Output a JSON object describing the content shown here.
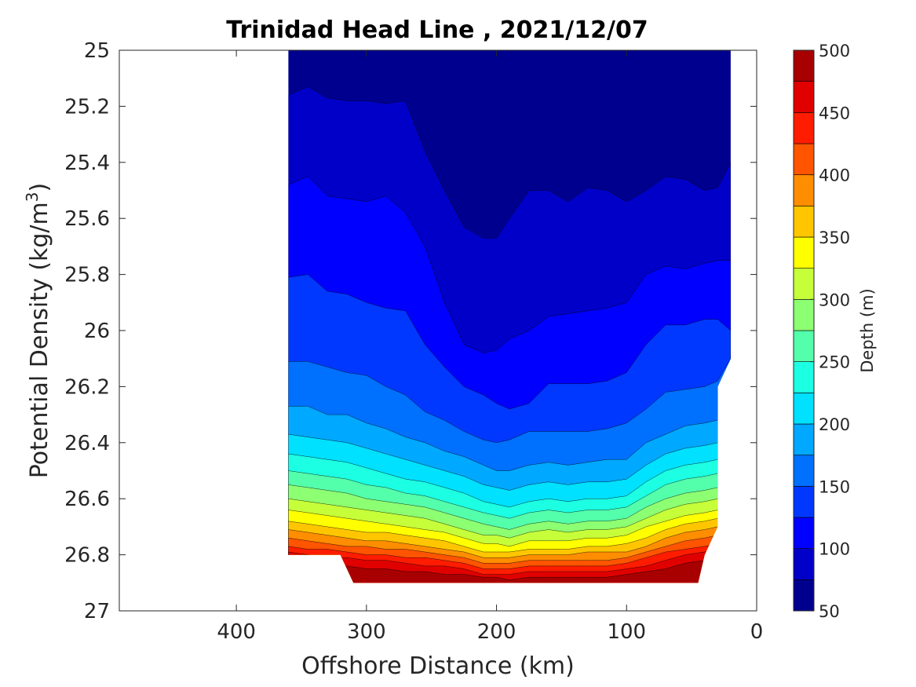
{
  "chart_data": {
    "type": "contour",
    "title": "Trinidad Head Line , 2021/12/07",
    "xlabel": "Offshore Distance (km)",
    "ylabel_prefix": "Potential Density (kg/m",
    "ylabel_sup": "3",
    "ylabel_suffix": ")",
    "xlim": [
      490,
      0
    ],
    "x_reversed": true,
    "ylim": [
      27,
      25
    ],
    "y_reversed": true,
    "x_ticks": [
      400,
      300,
      200,
      100,
      0
    ],
    "x_tick_labels": [
      "400",
      "300",
      "200",
      "100",
      "0"
    ],
    "y_ticks": [
      25,
      25.2,
      25.4,
      25.6,
      25.8,
      26,
      26.2,
      26.4,
      26.6,
      26.8,
      27
    ],
    "y_tick_labels": [
      "25",
      "25.2",
      "25.4",
      "25.6",
      "25.8",
      "26",
      "26.2",
      "26.4",
      "26.6",
      "26.8",
      "27"
    ],
    "colorbar": {
      "label": "Depth (m)",
      "range": [
        50,
        500
      ],
      "step": 25,
      "ticks": [
        50,
        100,
        150,
        200,
        250,
        300,
        350,
        400,
        450,
        500
      ],
      "tick_labels": [
        "50",
        "100",
        "150",
        "200",
        "250",
        "300",
        "350",
        "400",
        "450",
        "500"
      ],
      "colors": [
        "#00008f",
        "#0000c8",
        "#0000ff",
        "#0038ff",
        "#0070ff",
        "#00a8ff",
        "#00e0ff",
        "#1cffe3",
        "#54ffab",
        "#8dff72",
        "#c6ff39",
        "#ffff00",
        "#ffc600",
        "#ff8d00",
        "#ff5400",
        "#ff1c00",
        "#e00000",
        "#a80000"
      ]
    },
    "stations_km": [
      360,
      345,
      330,
      315,
      300,
      285,
      270,
      255,
      240,
      225,
      210,
      200,
      190,
      175,
      160,
      145,
      130,
      115,
      100,
      85,
      70,
      55,
      40,
      30,
      20
    ],
    "depth_isopycnals": [
      {
        "depth": 75,
        "sigma": [
          25.16,
          25.13,
          25.17,
          25.18,
          25.18,
          25.19,
          25.18,
          25.36,
          25.5,
          25.63,
          25.67,
          25.67,
          25.6,
          25.5,
          25.5,
          25.54,
          25.49,
          25.5,
          25.54,
          25.5,
          25.45,
          25.46,
          25.5,
          25.49,
          25.4
        ]
      },
      {
        "depth": 100,
        "sigma": [
          25.48,
          25.45,
          25.52,
          25.53,
          25.54,
          25.52,
          25.58,
          25.7,
          25.9,
          26.05,
          26.08,
          26.07,
          26.03,
          26.0,
          25.95,
          25.94,
          25.93,
          25.92,
          25.9,
          25.8,
          25.77,
          25.78,
          25.76,
          25.75,
          25.75
        ]
      },
      {
        "depth": 125,
        "sigma": [
          25.81,
          25.8,
          25.86,
          25.87,
          25.9,
          25.92,
          25.93,
          26.05,
          26.13,
          26.2,
          26.23,
          26.26,
          26.28,
          26.26,
          26.19,
          26.19,
          26.19,
          26.18,
          26.15,
          26.05,
          25.98,
          25.98,
          25.96,
          25.96,
          26.0
        ]
      },
      {
        "depth": 150,
        "sigma": [
          26.11,
          26.11,
          26.13,
          26.15,
          26.16,
          26.2,
          26.23,
          26.29,
          26.32,
          26.36,
          26.39,
          26.4,
          26.39,
          26.36,
          26.36,
          26.36,
          26.36,
          26.35,
          26.33,
          26.28,
          26.22,
          26.21,
          26.2,
          26.18,
          26.1
        ]
      },
      {
        "depth": 175,
        "sigma": [
          26.27,
          26.27,
          26.3,
          26.3,
          26.33,
          26.35,
          26.38,
          26.4,
          26.43,
          26.45,
          26.48,
          26.5,
          26.5,
          26.48,
          26.47,
          26.48,
          26.47,
          26.46,
          26.46,
          26.4,
          26.37,
          26.34,
          26.33,
          26.32,
          26.25
        ]
      },
      {
        "depth": 200,
        "sigma": [
          26.37,
          26.38,
          26.39,
          26.4,
          26.42,
          26.44,
          26.46,
          26.48,
          26.5,
          26.52,
          26.55,
          26.56,
          26.57,
          26.55,
          26.54,
          26.55,
          26.54,
          26.54,
          26.53,
          26.48,
          26.44,
          26.42,
          26.41,
          26.4,
          26.35
        ]
      },
      {
        "depth": 225,
        "sigma": [
          26.44,
          26.45,
          26.46,
          26.47,
          26.49,
          26.51,
          26.53,
          26.54,
          26.56,
          26.58,
          26.61,
          26.62,
          26.63,
          26.61,
          26.6,
          26.61,
          26.6,
          26.6,
          26.59,
          26.54,
          26.5,
          26.48,
          26.47,
          26.46,
          26.42
        ]
      },
      {
        "depth": 250,
        "sigma": [
          26.5,
          26.51,
          26.52,
          26.53,
          26.55,
          26.56,
          26.58,
          26.59,
          26.61,
          26.63,
          26.65,
          26.66,
          26.67,
          26.65,
          26.64,
          26.65,
          26.64,
          26.64,
          26.63,
          26.59,
          26.55,
          26.53,
          26.52,
          26.51,
          26.48
        ]
      },
      {
        "depth": 275,
        "sigma": [
          26.55,
          26.56,
          26.57,
          26.58,
          26.6,
          26.61,
          26.62,
          26.63,
          26.65,
          26.67,
          26.69,
          26.7,
          26.71,
          26.69,
          26.68,
          26.69,
          26.68,
          26.68,
          26.67,
          26.63,
          26.6,
          26.58,
          26.57,
          26.56,
          26.53
        ]
      },
      {
        "depth": 300,
        "sigma": [
          26.6,
          26.61,
          26.62,
          26.63,
          26.64,
          26.65,
          26.66,
          26.67,
          26.69,
          26.71,
          26.73,
          26.73,
          26.74,
          26.72,
          26.71,
          26.72,
          26.71,
          26.71,
          26.7,
          26.67,
          26.64,
          26.62,
          26.61,
          26.6,
          26.58
        ]
      },
      {
        "depth": 325,
        "sigma": [
          26.64,
          26.65,
          26.66,
          26.67,
          26.68,
          26.69,
          26.7,
          26.71,
          26.72,
          26.74,
          26.76,
          26.76,
          26.77,
          26.75,
          26.75,
          26.75,
          26.74,
          26.74,
          26.73,
          26.7,
          26.68,
          26.66,
          26.65,
          26.64,
          26.62
        ]
      },
      {
        "depth": 350,
        "sigma": [
          26.68,
          26.69,
          26.7,
          26.71,
          26.72,
          26.72,
          26.73,
          26.74,
          26.75,
          26.77,
          26.79,
          26.79,
          26.79,
          26.78,
          26.78,
          26.78,
          26.77,
          26.77,
          26.76,
          26.74,
          26.71,
          26.69,
          26.68,
          26.67,
          26.65
        ]
      },
      {
        "depth": 375,
        "sigma": [
          26.71,
          26.72,
          26.73,
          26.74,
          26.75,
          26.75,
          26.76,
          26.77,
          26.78,
          26.79,
          26.81,
          26.81,
          26.81,
          26.8,
          26.8,
          26.8,
          26.79,
          26.79,
          26.79,
          26.77,
          26.74,
          26.72,
          26.71,
          26.7,
          26.68
        ]
      },
      {
        "depth": 400,
        "sigma": [
          26.74,
          26.75,
          26.76,
          26.77,
          26.77,
          26.78,
          26.78,
          26.79,
          26.8,
          26.81,
          26.83,
          26.83,
          26.83,
          26.82,
          26.82,
          26.82,
          26.82,
          26.82,
          26.81,
          26.79,
          26.77,
          26.75,
          26.74,
          26.73,
          26.71
        ]
      },
      {
        "depth": 425,
        "sigma": [
          26.77,
          26.78,
          26.78,
          26.79,
          26.8,
          26.8,
          26.81,
          26.81,
          26.82,
          26.83,
          26.85,
          26.85,
          26.85,
          26.84,
          26.84,
          26.84,
          26.84,
          26.84,
          26.83,
          26.81,
          26.79,
          26.78,
          26.77,
          26.76,
          26.74
        ]
      },
      {
        "depth": 450,
        "sigma": [
          26.79,
          26.8,
          26.81,
          26.81,
          26.82,
          26.82,
          26.83,
          26.84,
          26.84,
          26.85,
          26.87,
          26.87,
          26.87,
          26.86,
          26.86,
          26.86,
          26.86,
          26.86,
          26.85,
          26.84,
          26.82,
          26.8,
          26.79,
          26.78,
          26.77
        ]
      },
      {
        "depth": 475,
        "sigma": [
          26.82,
          26.82,
          26.83,
          26.84,
          26.85,
          26.85,
          26.86,
          26.86,
          26.87,
          26.87,
          26.88,
          26.88,
          26.89,
          26.88,
          26.88,
          26.88,
          26.88,
          26.88,
          26.87,
          26.86,
          26.85,
          26.83,
          26.82,
          26.81,
          26.8
        ]
      }
    ],
    "data_boundary": [
      [
        360,
        25.0
      ],
      [
        20,
        25.0
      ],
      [
        20,
        26.1
      ],
      [
        30,
        26.2
      ],
      [
        30,
        26.7
      ],
      [
        40,
        26.8
      ],
      [
        45,
        26.9
      ],
      [
        310,
        26.9
      ],
      [
        320,
        26.8
      ],
      [
        360,
        26.8
      ]
    ]
  }
}
